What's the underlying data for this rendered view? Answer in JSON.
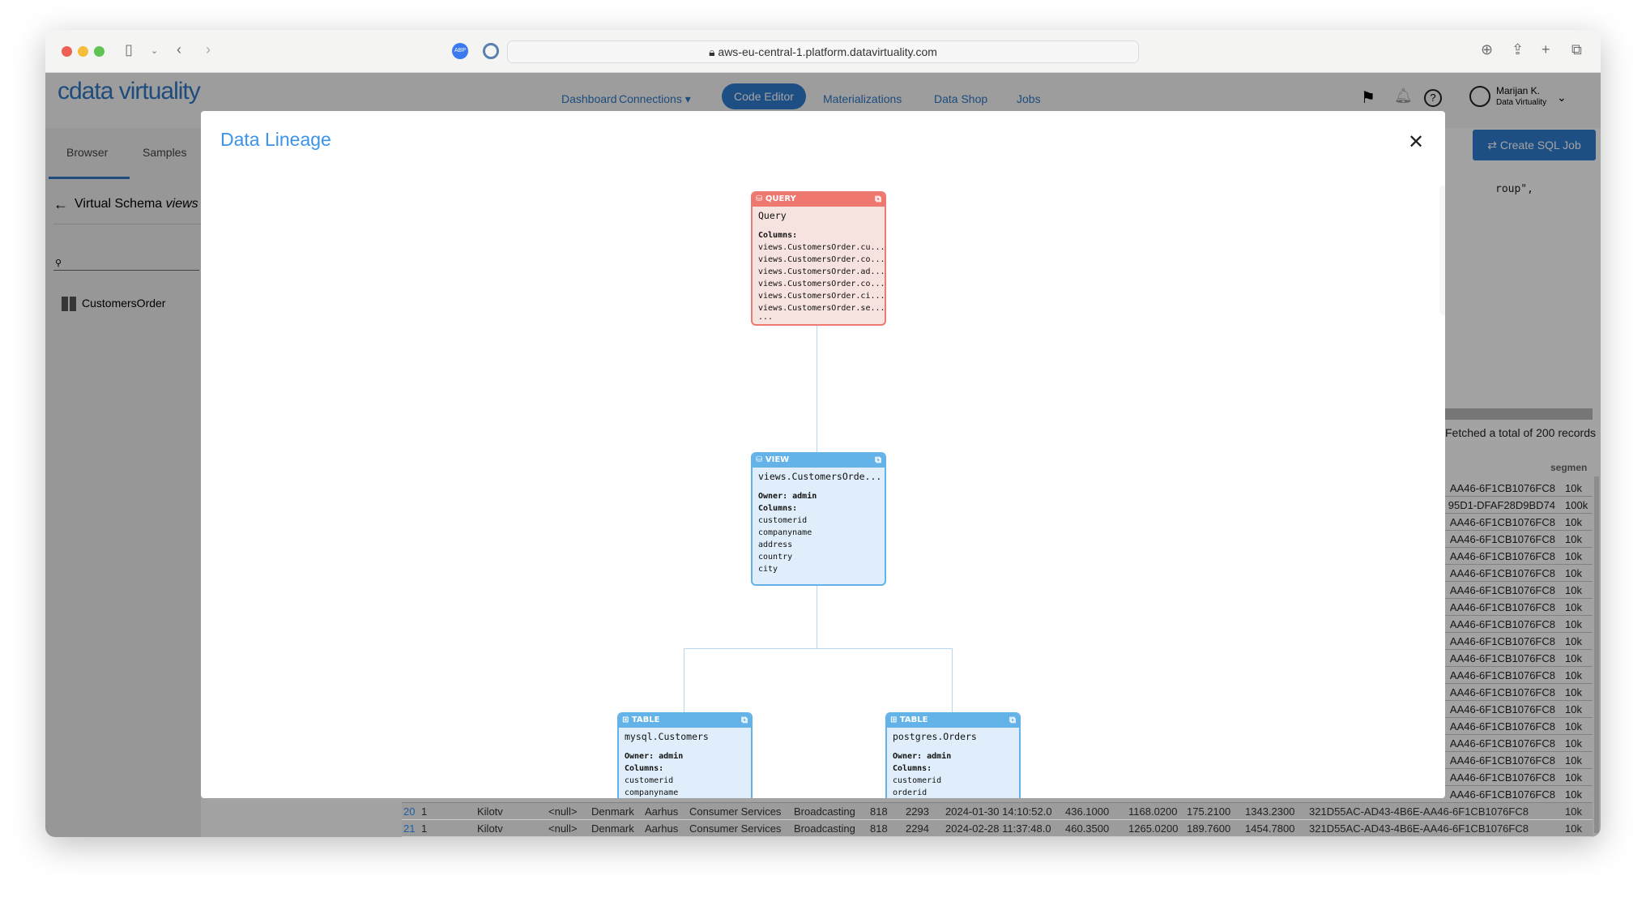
{
  "browser": {
    "url": "aws-eu-central-1.platform.datavirtuality.com",
    "extensions": [
      "ABP",
      "password-manager-icon"
    ]
  },
  "header": {
    "logo": "cdata virtuality",
    "nav": [
      "Dashboard",
      "Connections",
      "Code Editor",
      "Materializations",
      "Data Shop",
      "Jobs"
    ],
    "active": "Code Editor",
    "user": {
      "name": "Marijan K.",
      "org": "Data Virtuality"
    }
  },
  "sidebar": {
    "tabs": [
      "Browser",
      "Samples"
    ],
    "active_tab": "Browser",
    "back_label": "Virtual Schema",
    "schema": "views",
    "search_placeholder": "",
    "items": [
      "CustomersOrder"
    ]
  },
  "editor": {
    "snippet": "roup\","
  },
  "toolbar": {
    "create_job": "Create SQL Job"
  },
  "results": {
    "status": "Fetched a total of 200 records",
    "header_last": "segmen",
    "partial_rows": [
      [
        "AA46-6F1CB1076FC8",
        "10k"
      ],
      [
        "95D1-DFAF28D9BD74",
        "100k"
      ],
      [
        "AA46-6F1CB1076FC8",
        "10k"
      ],
      [
        "AA46-6F1CB1076FC8",
        "10k"
      ],
      [
        "AA46-6F1CB1076FC8",
        "10k"
      ],
      [
        "AA46-6F1CB1076FC8",
        "10k"
      ],
      [
        "AA46-6F1CB1076FC8",
        "10k"
      ],
      [
        "AA46-6F1CB1076FC8",
        "10k"
      ],
      [
        "AA46-6F1CB1076FC8",
        "10k"
      ],
      [
        "AA46-6F1CB1076FC8",
        "10k"
      ],
      [
        "AA46-6F1CB1076FC8",
        "10k"
      ],
      [
        "AA46-6F1CB1076FC8",
        "10k"
      ],
      [
        "AA46-6F1CB1076FC8",
        "10k"
      ],
      [
        "AA46-6F1CB1076FC8",
        "10k"
      ],
      [
        "AA46-6F1CB1076FC8",
        "10k"
      ],
      [
        "AA46-6F1CB1076FC8",
        "10k"
      ],
      [
        "AA46-6F1CB1076FC8",
        "10k"
      ],
      [
        "AA46-6F1CB1076FC8",
        "10k"
      ],
      [
        "AA46-6F1CB1076FC8",
        "10k"
      ]
    ],
    "full_rows": [
      [
        "20",
        "1",
        "Kilotv",
        "<null>",
        "Denmark",
        "Aarhus",
        "Consumer Services",
        "Broadcasting",
        "818",
        "2293",
        "2024-01-30 14:10:52.0",
        "436.1000",
        "1168.0200",
        "175.2100",
        "1343.2300",
        "321D55AC-AD43-4B6E-AA46-6F1CB1076FC8",
        "10k"
      ],
      [
        "21",
        "1",
        "Kilotv",
        "<null>",
        "Denmark",
        "Aarhus",
        "Consumer Services",
        "Broadcasting",
        "818",
        "2294",
        "2024-02-28 11:37:48.0",
        "460.3500",
        "1265.0200",
        "189.7600",
        "1454.7800",
        "321D55AC-AD43-4B6E-AA46-6F1CB1076FC8",
        "10k"
      ]
    ]
  },
  "modal": {
    "title": "Data Lineage",
    "nodes": {
      "query": {
        "type": "QUERY",
        "name": "Query",
        "columns_label": "Columns:",
        "columns": [
          "views.CustomersOrder.cu...",
          "views.CustomersOrder.co...",
          "views.CustomersOrder.ad...",
          "views.CustomersOrder.co...",
          "views.CustomersOrder.ci...",
          "views.CustomersOrder.se...",
          "..."
        ],
        "color": "#ee776e"
      },
      "view": {
        "type": "VIEW",
        "name": "views.CustomersOrde...",
        "owner": "Owner: admin",
        "columns_label": "Columns:",
        "columns": [
          "customerid",
          "companyname",
          "address",
          "country",
          "city"
        ],
        "color": "#64b3e8"
      },
      "table1": {
        "type": "TABLE",
        "name": "mysql.Customers",
        "owner": "Owner: admin",
        "columns_label": "Columns:",
        "columns": [
          "customerid",
          "companyname"
        ]
      },
      "table2": {
        "type": "TABLE",
        "name": "postgres.Orders",
        "owner": "Owner: admin",
        "columns_label": "Columns:",
        "columns": [
          "customerid",
          "orderid"
        ]
      }
    },
    "tools": [
      "zoom-in-icon",
      "zoom-out-icon",
      "fit-to-screen-icon",
      "download-icon"
    ]
  }
}
